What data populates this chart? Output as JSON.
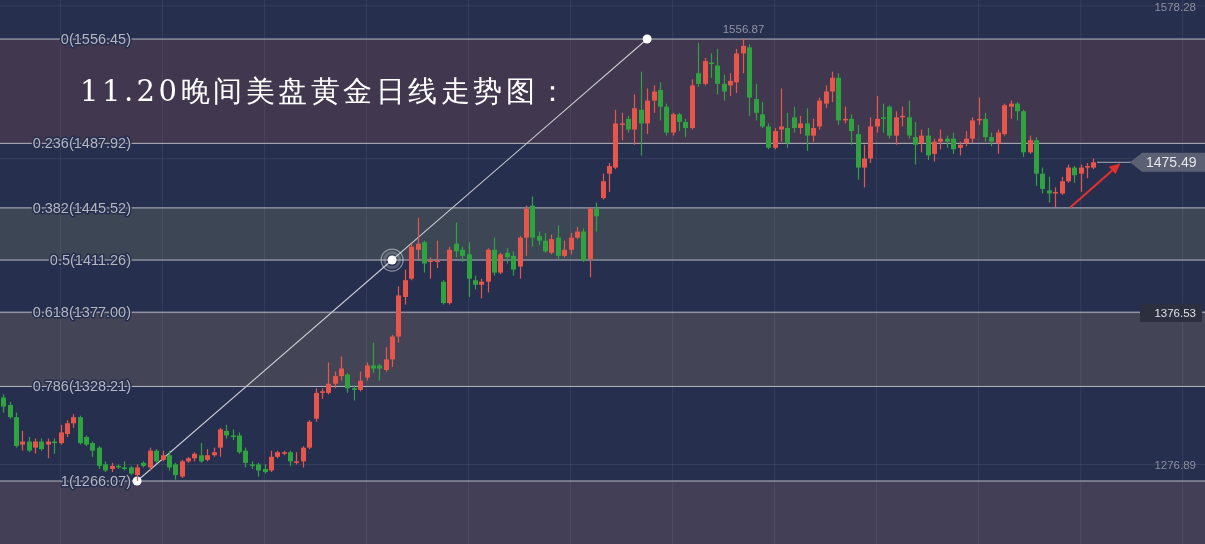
{
  "chart_data": {
    "type": "candlestick",
    "title": "11.20晚间美盘黄金日线走势图：",
    "categories": [
      null,
      null,
      null,
      null,
      null,
      null,
      null,
      null,
      null,
      null,
      null,
      null,
      null,
      null,
      null,
      null,
      null,
      null,
      null,
      null,
      null,
      null,
      null,
      null,
      null,
      null,
      null,
      null,
      null,
      null,
      null,
      null,
      null,
      null,
      null,
      null,
      null,
      null,
      null,
      null,
      null,
      null,
      null,
      null,
      null,
      null,
      null,
      null,
      null,
      null,
      null,
      null,
      null,
      null,
      null,
      null,
      null,
      null,
      null,
      null,
      null,
      null,
      null,
      null,
      null,
      null,
      null,
      null,
      null,
      null,
      null,
      null,
      null,
      null,
      null,
      null,
      null,
      null,
      null,
      null,
      null,
      null,
      null,
      null,
      null,
      null,
      null,
      null,
      null,
      null,
      null,
      null,
      null,
      null,
      null,
      null,
      null,
      null,
      null,
      null,
      null,
      null,
      null,
      null,
      null,
      null,
      null,
      null,
      null,
      null,
      null,
      null,
      null,
      null,
      null,
      null,
      null,
      null,
      null,
      null,
      null,
      null,
      null,
      null,
      null,
      null,
      null,
      null,
      null,
      null,
      null,
      null,
      null,
      null,
      null,
      null,
      null,
      null,
      null,
      null,
      null,
      null,
      null,
      null,
      null,
      null,
      null,
      null,
      null,
      null,
      null,
      null,
      null,
      null,
      null,
      null,
      null,
      null,
      null,
      null,
      null,
      null,
      null,
      null,
      null,
      null,
      null,
      null,
      null,
      null,
      null,
      null,
      null,
      null,
      null,
      null,
      null,
      null,
      null,
      null,
      null,
      null,
      null,
      null,
      null,
      null,
      null,
      null,
      null
    ],
    "ohlc": [
      [
        1321,
        1323,
        1311,
        1315
      ],
      [
        1316,
        1318,
        1307,
        1308
      ],
      [
        1308,
        1311,
        1288,
        1289
      ],
      [
        1290,
        1299,
        1286,
        1292
      ],
      [
        1292,
        1295,
        1285,
        1286
      ],
      [
        1288,
        1294,
        1284,
        1292
      ],
      [
        1292,
        1294,
        1286,
        1287
      ],
      [
        1290,
        1294,
        1281,
        1292
      ],
      [
        1292,
        1294,
        1284,
        1291
      ],
      [
        1291,
        1303,
        1290,
        1298
      ],
      [
        1297,
        1306,
        1295,
        1304
      ],
      [
        1304,
        1310,
        1301,
        1308
      ],
      [
        1308,
        1309,
        1290,
        1291
      ],
      [
        1295,
        1296,
        1289,
        1290
      ],
      [
        1291,
        1292,
        1282,
        1286
      ],
      [
        1288,
        1289,
        1274,
        1276
      ],
      [
        1277,
        1279,
        1272,
        1273
      ],
      [
        1274,
        1278,
        1272,
        1276
      ],
      [
        1276,
        1277,
        1274,
        1275
      ],
      [
        1275,
        1279,
        1273,
        1274
      ],
      [
        1275,
        1276,
        1270,
        1271
      ],
      [
        1270,
        1277,
        1266.07,
        1275
      ],
      [
        1278,
        1279,
        1275,
        1276
      ],
      [
        1275,
        1288,
        1273,
        1286
      ],
      [
        1286,
        1287,
        1278,
        1279
      ],
      [
        1280,
        1286,
        1279,
        1283
      ],
      [
        1283,
        1286,
        1273,
        1275
      ],
      [
        1277,
        1278,
        1267,
        1270
      ],
      [
        1269,
        1280,
        1268,
        1279
      ],
      [
        1279,
        1282,
        1278,
        1281
      ],
      [
        1281,
        1285,
        1279,
        1284
      ],
      [
        1283,
        1291,
        1278,
        1279
      ],
      [
        1280,
        1287,
        1279,
        1283
      ],
      [
        1283,
        1288,
        1282,
        1285
      ],
      [
        1288,
        1301,
        1282,
        1300
      ],
      [
        1299,
        1303,
        1294,
        1296
      ],
      [
        1296,
        1300,
        1293,
        1295
      ],
      [
        1296,
        1298,
        1284,
        1285
      ],
      [
        1286,
        1288,
        1275,
        1278
      ],
      [
        1277,
        1279,
        1274,
        1276
      ],
      [
        1277,
        1278,
        1269,
        1273
      ],
      [
        1274,
        1277,
        1271,
        1272
      ],
      [
        1273,
        1286,
        1272,
        1282
      ],
      [
        1282,
        1286,
        1281,
        1285
      ],
      [
        1284,
        1286,
        1283,
        1285
      ],
      [
        1285,
        1286,
        1276,
        1279
      ],
      [
        1278,
        1285,
        1277,
        1279
      ],
      [
        1279,
        1289,
        1275,
        1288
      ],
      [
        1288,
        1306,
        1287,
        1305
      ],
      [
        1307,
        1327,
        1305,
        1324
      ],
      [
        1324,
        1327,
        1320,
        1325
      ],
      [
        1324,
        1344,
        1323,
        1330
      ],
      [
        1330,
        1338,
        1327,
        1335
      ],
      [
        1335,
        1348,
        1332,
        1340
      ],
      [
        1336,
        1337,
        1324,
        1327
      ],
      [
        1327,
        1329,
        1319,
        1326
      ],
      [
        1326,
        1338,
        1325,
        1332
      ],
      [
        1334,
        1344,
        1332,
        1342
      ],
      [
        1342,
        1357,
        1337,
        1340
      ],
      [
        1342,
        1343,
        1332,
        1340
      ],
      [
        1339,
        1354,
        1338,
        1346
      ],
      [
        1346,
        1362,
        1341,
        1361
      ],
      [
        1361,
        1394,
        1357,
        1388
      ],
      [
        1387,
        1405,
        1382,
        1398
      ],
      [
        1399,
        1422,
        1398,
        1420
      ],
      [
        1418,
        1439,
        1411,
        1422
      ],
      [
        1423,
        1424,
        1403,
        1409
      ],
      [
        1410,
        1413,
        1399,
        1411
      ],
      [
        1410,
        1424,
        1406,
        1411
      ],
      [
        1397,
        1398,
        1382,
        1383
      ],
      [
        1383,
        1420,
        1382,
        1418
      ],
      [
        1422,
        1436,
        1413,
        1417
      ],
      [
        1418,
        1420,
        1410,
        1414
      ],
      [
        1415,
        1423,
        1387,
        1399
      ],
      [
        1398,
        1401,
        1392,
        1395
      ],
      [
        1395,
        1399,
        1386,
        1397
      ],
      [
        1397,
        1419,
        1390,
        1418
      ],
      [
        1418,
        1426,
        1401,
        1403
      ],
      [
        1403,
        1416,
        1402,
        1415
      ],
      [
        1416,
        1419,
        1409,
        1413
      ],
      [
        1414,
        1417,
        1401,
        1405
      ],
      [
        1407,
        1427,
        1399,
        1426
      ],
      [
        1426,
        1447,
        1414,
        1445
      ],
      [
        1447,
        1453,
        1420,
        1426
      ],
      [
        1427,
        1430,
        1421,
        1424
      ],
      [
        1424,
        1429,
        1416,
        1417
      ],
      [
        1416,
        1428,
        1415,
        1425
      ],
      [
        1426,
        1434,
        1412,
        1414
      ],
      [
        1414,
        1424,
        1413,
        1418
      ],
      [
        1418,
        1429,
        1415,
        1426
      ],
      [
        1426,
        1433,
        1425,
        1430
      ],
      [
        1430,
        1432,
        1410,
        1411
      ],
      [
        1412,
        1446,
        1400,
        1445
      ],
      [
        1445,
        1449,
        1430,
        1440
      ],
      [
        1452,
        1468,
        1451,
        1463
      ],
      [
        1468,
        1475,
        1456,
        1473
      ],
      [
        1472,
        1510,
        1471,
        1501
      ],
      [
        1500,
        1508,
        1490,
        1501
      ],
      [
        1504,
        1506,
        1495,
        1497
      ],
      [
        1497,
        1520,
        1487,
        1511
      ],
      [
        1510,
        1535,
        1480,
        1501
      ],
      [
        1501,
        1524,
        1494,
        1516
      ],
      [
        1516,
        1526,
        1508,
        1522
      ],
      [
        1523,
        1528,
        1503,
        1512
      ],
      [
        1512,
        1514,
        1493,
        1495
      ],
      [
        1495,
        1508,
        1493,
        1507
      ],
      [
        1507,
        1508,
        1496,
        1502
      ],
      [
        1502,
        1504,
        1492,
        1498
      ],
      [
        1498,
        1530,
        1497,
        1526
      ],
      [
        1534,
        1554,
        1525,
        1527
      ],
      [
        1527,
        1544,
        1526,
        1542
      ],
      [
        1541,
        1547,
        1531,
        1540
      ],
      [
        1539,
        1550,
        1520,
        1527
      ],
      [
        1527,
        1533,
        1516,
        1522
      ],
      [
        1526,
        1534,
        1519,
        1529
      ],
      [
        1528,
        1550,
        1521,
        1547
      ],
      [
        1547,
        1556.87,
        1534,
        1552
      ],
      [
        1551,
        1553,
        1506,
        1518
      ],
      [
        1517,
        1527,
        1503,
        1508
      ],
      [
        1507,
        1515,
        1498,
        1499
      ],
      [
        1499,
        1501,
        1484,
        1485
      ],
      [
        1485,
        1498,
        1484,
        1496
      ],
      [
        1497,
        1524,
        1489,
        1499
      ],
      [
        1498,
        1508,
        1485,
        1488
      ],
      [
        1505,
        1512,
        1495,
        1498
      ],
      [
        1498,
        1506,
        1494,
        1501
      ],
      [
        1501,
        1511,
        1483,
        1493
      ],
      [
        1493,
        1504,
        1489,
        1498
      ],
      [
        1499,
        1518,
        1497,
        1516
      ],
      [
        1514,
        1526,
        1511,
        1522
      ],
      [
        1522,
        1535,
        1515,
        1531
      ],
      [
        1531,
        1534,
        1500,
        1503
      ],
      [
        1503,
        1512,
        1501,
        1504
      ],
      [
        1504,
        1507,
        1487,
        1496
      ],
      [
        1494,
        1500,
        1464,
        1472
      ],
      [
        1472,
        1487,
        1459,
        1478
      ],
      [
        1478,
        1505,
        1475,
        1499
      ],
      [
        1499,
        1519,
        1495,
        1504
      ],
      [
        1505,
        1514,
        1495,
        1504
      ],
      [
        1512,
        1513,
        1491,
        1493
      ],
      [
        1493,
        1509,
        1487,
        1505
      ],
      [
        1505,
        1512,
        1499,
        1506
      ],
      [
        1505,
        1516,
        1491,
        1493
      ],
      [
        1492,
        1502,
        1474,
        1487
      ],
      [
        1488,
        1497,
        1482,
        1493
      ],
      [
        1493,
        1498,
        1477,
        1480
      ],
      [
        1481,
        1491,
        1476,
        1489
      ],
      [
        1489,
        1497,
        1484,
        1491
      ],
      [
        1491,
        1493,
        1485,
        1489
      ],
      [
        1491,
        1495,
        1481,
        1484
      ],
      [
        1485,
        1489,
        1480,
        1487
      ],
      [
        1488,
        1496,
        1486,
        1491
      ],
      [
        1491,
        1505,
        1488,
        1503
      ],
      [
        1503,
        1518,
        1500,
        1504
      ],
      [
        1504,
        1508,
        1489,
        1492
      ],
      [
        1492,
        1495,
        1486,
        1489
      ],
      [
        1488,
        1497,
        1481,
        1495
      ],
      [
        1494,
        1514,
        1493,
        1513
      ],
      [
        1512,
        1516,
        1504,
        1514
      ],
      [
        1514,
        1515,
        1503,
        1509
      ],
      [
        1509,
        1510,
        1479,
        1482
      ],
      [
        1482,
        1493,
        1481,
        1490
      ],
      [
        1490,
        1492,
        1460,
        1468
      ],
      [
        1468,
        1472,
        1455,
        1458
      ],
      [
        1457,
        1466,
        1449,
        1455
      ],
      [
        1455,
        1459,
        1446,
        1456
      ],
      [
        1455,
        1466,
        1454,
        1463
      ],
      [
        1463,
        1474,
        1462,
        1472
      ],
      [
        1472,
        1473,
        1462,
        1467
      ],
      [
        1468,
        1474,
        1456,
        1472
      ],
      [
        1472,
        1475,
        1465,
        1473
      ],
      [
        1472,
        1478,
        1471,
        1475.49
      ],
      null,
      null,
      null,
      null,
      null,
      null,
      null,
      null,
      null,
      null,
      null,
      null,
      null,
      null,
      null,
      null,
      null
    ],
    "colors": [
      "#2fa33f",
      "#2fa33f",
      "#2fa33f",
      "#e8554a",
      "#2fa33f",
      "#e8554a",
      "#2fa33f",
      "#e8554a",
      "#2fa33f",
      "#e8554a",
      "#e8554a",
      "#e8554a",
      "#2fa33f",
      "#2fa33f",
      "#2fa33f",
      "#2fa33f",
      "#2fa33f",
      "#e8554a",
      "#2fa33f",
      "#2fa33f",
      "#2fa33f",
      "#e8554a",
      "#2fa33f",
      "#e8554a",
      "#2fa33f",
      "#e8554a",
      "#2fa33f",
      "#2fa33f",
      "#e8554a",
      "#e8554a",
      "#e8554a",
      "#2fa33f",
      "#e8554a",
      "#e8554a",
      "#e8554a",
      "#2fa33f",
      "#2fa33f",
      "#2fa33f",
      "#2fa33f",
      "#2fa33f",
      "#2fa33f",
      "#2fa33f",
      "#e8554a",
      "#e8554a",
      "#e8554a",
      "#2fa33f",
      "#e8554a",
      "#e8554a",
      "#e8554a",
      "#e8554a",
      "#e8554a",
      "#e8554a",
      "#e8554a",
      "#e8554a",
      "#2fa33f",
      "#2fa33f",
      "#e8554a",
      "#e8554a",
      "#2fa33f",
      "#2fa33f",
      "#e8554a",
      "#e8554a",
      "#e8554a",
      "#e8554a",
      "#e8554a",
      "#e8554a",
      "#2fa33f",
      "#e8554a",
      "#e8554a",
      "#2fa33f",
      "#e8554a",
      "#2fa33f",
      "#2fa33f",
      "#2fa33f",
      "#2fa33f",
      "#e8554a",
      "#e8554a",
      "#2fa33f",
      "#e8554a",
      "#2fa33f",
      "#2fa33f",
      "#e8554a",
      "#e8554a",
      "#2fa33f",
      "#2fa33f",
      "#2fa33f",
      "#e8554a",
      "#2fa33f",
      "#e8554a",
      "#e8554a",
      "#e8554a",
      "#2fa33f",
      "#e8554a",
      "#2fa33f",
      "#e8554a",
      "#e8554a",
      "#e8554a",
      "#e8554a",
      "#2fa33f",
      "#e8554a",
      "#2fa33f",
      "#e8554a",
      "#e8554a",
      "#2fa33f",
      "#2fa33f",
      "#e8554a",
      "#2fa33f",
      "#2fa33f",
      "#e8554a",
      "#2fa33f",
      "#e8554a",
      "#2fa33f",
      "#2fa33f",
      "#2fa33f",
      "#e8554a",
      "#e8554a",
      "#e8554a",
      "#2fa33f",
      "#2fa33f",
      "#2fa33f",
      "#2fa33f",
      "#e8554a",
      "#e8554a",
      "#2fa33f",
      "#2fa33f",
      "#e8554a",
      "#2fa33f",
      "#e8554a",
      "#e8554a",
      "#e8554a",
      "#e8554a",
      "#2fa33f",
      "#e8554a",
      "#2fa33f",
      "#2fa33f",
      "#e8554a",
      "#e8554a",
      "#e8554a",
      "#2fa33f",
      "#2fa33f",
      "#e8554a",
      "#e8554a",
      "#2fa33f",
      "#2fa33f",
      "#e8554a",
      "#2fa33f",
      "#e8554a",
      "#e8554a",
      "#2fa33f",
      "#2fa33f",
      "#e8554a",
      "#e8554a",
      "#e8554a",
      "#e8554a",
      "#2fa33f",
      "#2fa33f",
      "#e8554a",
      "#e8554a",
      "#e8554a",
      "#2fa33f",
      "#2fa33f",
      "#e8554a",
      "#2fa33f",
      "#2fa33f",
      "#2fa33f",
      "#e8554a",
      "#e8554a",
      "#e8554a",
      "#2fa33f",
      "#e8554a",
      "#e8554a",
      "#e8554a",
      null,
      null,
      null,
      null,
      null,
      null,
      null,
      null,
      null,
      null,
      null,
      null,
      null,
      null,
      null,
      null,
      null
    ],
    "series": [
      {
        "type": "line",
        "color": "#c9cad1",
        "marker": "circle",
        "values": [
          null,
          null,
          null,
          null,
          null,
          null,
          null,
          null,
          null,
          null,
          null,
          null,
          null,
          null,
          null,
          null,
          null,
          null,
          null,
          null,
          null,
          1266.07,
          null,
          null,
          null,
          null,
          null,
          null,
          null,
          null,
          null,
          null,
          null,
          null,
          null,
          null,
          null,
          null,
          null,
          null,
          null,
          null,
          null,
          null,
          null,
          null,
          null,
          null,
          null,
          null,
          null,
          null,
          null,
          null,
          null,
          null,
          null,
          null,
          null,
          null,
          null,
          1411.26,
          null,
          null,
          null,
          null,
          null,
          null,
          null,
          null,
          null,
          null,
          null,
          null,
          null,
          null,
          null,
          null,
          null,
          null,
          null,
          null,
          null,
          null,
          null,
          null,
          null,
          null,
          null,
          null,
          null,
          null,
          null,
          null,
          null,
          null,
          null,
          null,
          null,
          null,
          null,
          1556.45,
          null,
          null,
          null,
          null,
          null,
          null,
          null,
          null,
          null,
          null,
          null,
          null,
          null,
          null,
          null,
          null,
          null,
          null,
          null,
          null,
          null,
          null,
          null,
          null,
          null,
          null,
          null,
          null,
          null,
          null,
          null,
          null,
          null,
          null,
          null,
          null,
          null,
          null,
          null,
          null,
          null,
          null,
          null,
          null,
          null,
          null,
          null,
          null,
          null,
          null,
          null,
          null,
          null,
          null,
          null,
          null,
          null,
          null,
          null,
          null,
          null,
          null,
          null,
          null,
          null,
          null,
          null,
          null,
          null,
          null,
          null,
          null,
          null,
          null,
          null,
          null,
          null,
          null,
          null,
          null,
          null,
          null,
          null,
          null,
          null,
          null,
          null
        ]
      }
    ],
    "ylim": [
      1224.7,
      1582.1
    ],
    "yticks": [
      1578.28,
      {
        "value": 1477.88,
        "label": null
      },
      1376.53,
      1276.89
    ],
    "tick_labels": "y",
    "grid": "y",
    "ref_lines": [
      {
        "axis": "y",
        "value": 1556.45,
        "label": "0(1556.45)",
        "color": "#b7b9c1"
      },
      {
        "axis": "y",
        "value": 1487.92,
        "label": "0.236(1487.92)",
        "color": "#b7b9c1"
      },
      {
        "axis": "y",
        "value": 1445.52,
        "label": "0.382(1445.52)",
        "color": "#b7b9c1"
      },
      {
        "axis": "y",
        "value": 1411.26,
        "label": "0.5(1411.26)",
        "color": "#b7b9c1"
      },
      {
        "axis": "y",
        "value": 1377.0,
        "label": "0.618(1377.00)",
        "color": "#b7b9c1"
      },
      {
        "axis": "y",
        "value": 1328.21,
        "label": "0.786(1328.21)",
        "color": "#b7b9c1"
      },
      {
        "axis": "y",
        "value": 1266.07,
        "label": "1(1266.07)",
        "color": "#b7b9c1"
      }
    ],
    "bands": [
      {
        "axis": "y",
        "from": 1487.92,
        "to": 1556.45,
        "color": "#41374f"
      },
      {
        "axis": "y",
        "from": 1411.26,
        "to": 1445.52,
        "color": "#3c4655"
      },
      {
        "axis": "y",
        "from": 1328.21,
        "to": 1377.0,
        "color": "#434456"
      },
      {
        "axis": "y",
        "from": 1224.7,
        "to": 1266.07,
        "color": "#433f56"
      }
    ],
    "annotations": [
      {
        "text": "1556.87",
        "y": 1556.87
      },
      "1475.49"
    ]
  }
}
